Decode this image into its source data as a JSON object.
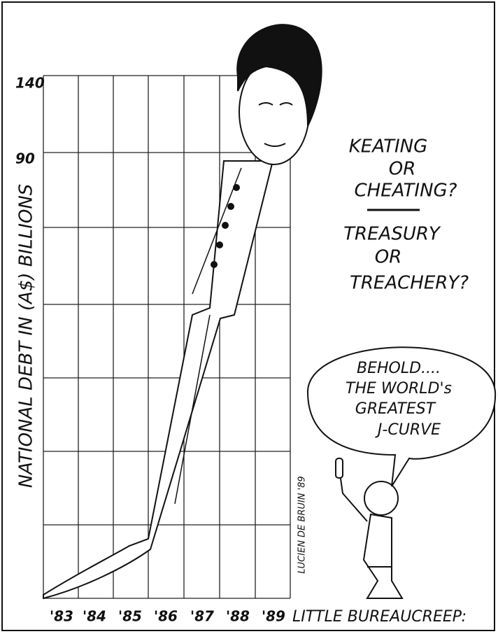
{
  "axis": {
    "title": "NATIONAL DEBT IN (A$) BILLIONS",
    "y_labels": [
      "140",
      "90"
    ],
    "x_labels": [
      "'83",
      "'84",
      "'85",
      "'86",
      "'87",
      "'88",
      "'89"
    ]
  },
  "caption": "LITTLE BUREAUCREEP:",
  "slogans": {
    "first": [
      "KEATING",
      "OR",
      "CHEATING?"
    ],
    "second": [
      "TREASURY",
      "OR",
      "TREACHERY?"
    ]
  },
  "speech_bubble": {
    "lines": [
      "BEHOLD....",
      "THE WORLD's",
      "GREATEST",
      "J-CURVE"
    ]
  },
  "signature": "LUCIEN DE BRUIN '89"
}
